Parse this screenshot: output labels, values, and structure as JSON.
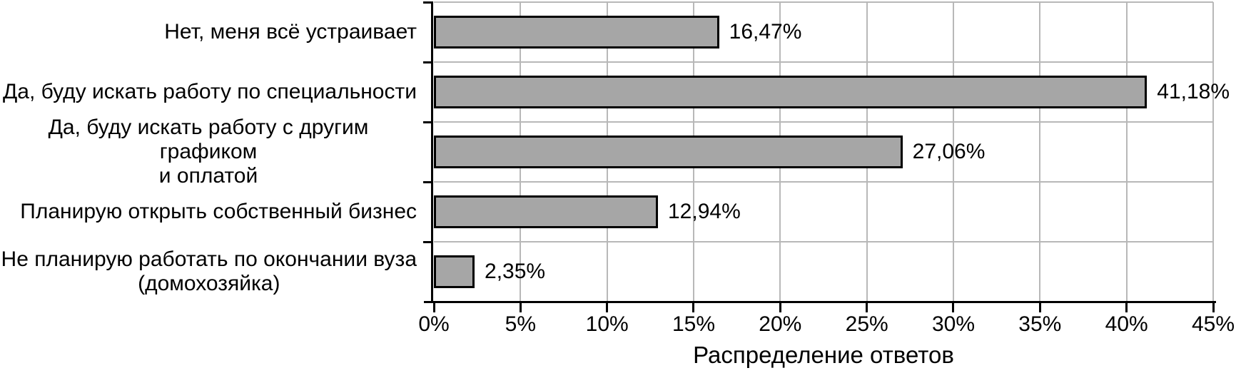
{
  "chart_data": {
    "type": "bar",
    "orientation": "horizontal",
    "title": "",
    "xlabel": "Распределение ответов",
    "ylabel": "",
    "categories": [
      "Нет, меня всё устраивает",
      "Да, буду искать работу по специальности",
      "Да, буду искать работу с другим графиком\nи оплатой",
      "Планирую открыть собственный бизнес",
      "Не планирую работать по окончании вуза\n(домохозяйка)"
    ],
    "values": [
      16.47,
      41.18,
      27.06,
      12.94,
      2.35
    ],
    "value_labels": [
      "16,47%",
      "41,18%",
      "27,06%",
      "12,94%",
      "2,35%"
    ],
    "xlim": [
      0,
      45
    ],
    "x_tick_values": [
      0,
      5,
      10,
      15,
      20,
      25,
      30,
      35,
      40,
      45
    ],
    "x_tick_labels": [
      "0%",
      "5%",
      "10%",
      "15%",
      "20%",
      "25%",
      "30%",
      "35%",
      "40%",
      "45%"
    ],
    "grid": true,
    "legend_position": "none",
    "colors": {
      "bar_fill": "#a6a6a6",
      "bar_border": "#000000",
      "gridline": "#b8b8b8",
      "axis": "#000000",
      "text": "#000000",
      "background": "#ffffff"
    }
  }
}
